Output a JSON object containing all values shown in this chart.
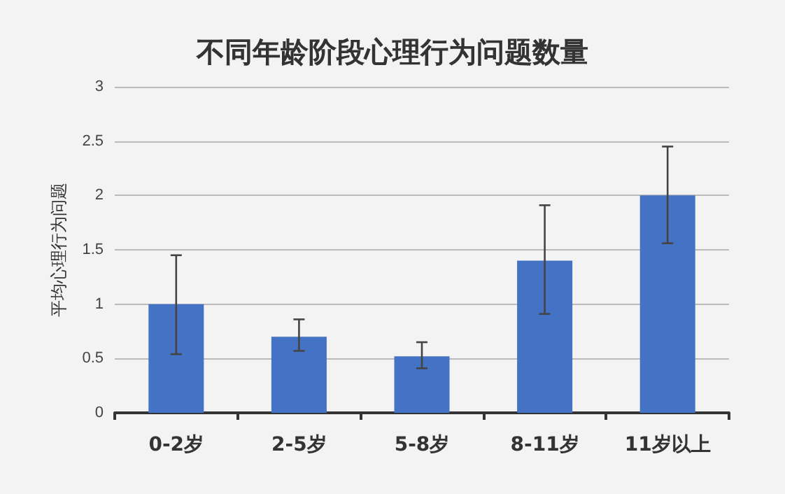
{
  "chart_data": {
    "type": "bar",
    "title": "不同年龄阶段心理行为问题数量",
    "ylabel": "平均心理行为问题",
    "categories": [
      "0-2岁",
      "2-5岁",
      "5-8岁",
      "8-11岁",
      "11岁以上"
    ],
    "values": [
      1.0,
      0.7,
      0.52,
      1.4,
      2.0
    ],
    "errors": [
      [
        0.54,
        1.45
      ],
      [
        0.57,
        0.86
      ],
      [
        0.41,
        0.65
      ],
      [
        0.91,
        1.91
      ],
      [
        1.56,
        2.45
      ]
    ],
    "color": "#4472c4",
    "ylim": [
      0,
      3
    ],
    "yticks": [
      0,
      0.5,
      1,
      1.5,
      2,
      2.5,
      3
    ],
    "grid": "y"
  }
}
